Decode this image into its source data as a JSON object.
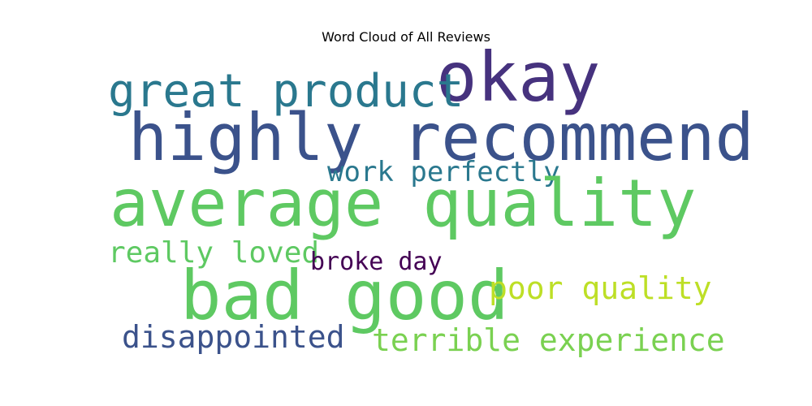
{
  "chart_data": {
    "type": "wordcloud",
    "title": "Word Cloud of All Reviews",
    "background": "#ffffff",
    "words": [
      {
        "text": "okay",
        "weight": 0.95,
        "color": "#46327e"
      },
      {
        "text": "great product",
        "weight": 0.62,
        "color": "#2a788e"
      },
      {
        "text": "highly recommend",
        "weight": 0.92,
        "color": "#3b528b"
      },
      {
        "text": "work perfectly",
        "weight": 0.43,
        "color": "#2a788e"
      },
      {
        "text": "average quality",
        "weight": 1.0,
        "color": "#5ec962"
      },
      {
        "text": "really loved",
        "weight": 0.44,
        "color": "#5ec962"
      },
      {
        "text": "broke day",
        "weight": 0.4,
        "color": "#440154"
      },
      {
        "text": "bad good",
        "weight": 1.0,
        "color": "#5ec962"
      },
      {
        "text": "poor quality",
        "weight": 0.46,
        "color": "#bddf26"
      },
      {
        "text": "disappointed",
        "weight": 0.46,
        "color": "#3b528b"
      },
      {
        "text": "terrible experience",
        "weight": 0.45,
        "color": "#7ad151"
      }
    ]
  }
}
